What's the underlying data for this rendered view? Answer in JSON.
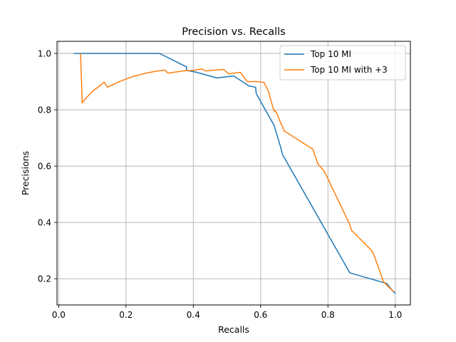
{
  "chart_data": {
    "type": "line",
    "title": "Precision vs. Recalls",
    "xlabel": "Recalls",
    "ylabel": "Precisions",
    "xlim": [
      -0.005,
      1.045
    ],
    "ylim": [
      0.107,
      1.043
    ],
    "xticks": [
      0.0,
      0.2,
      0.4,
      0.6,
      0.8,
      1.0
    ],
    "xtick_labels": [
      "0.0",
      "0.2",
      "0.4",
      "0.6",
      "0.8",
      "1.0"
    ],
    "yticks": [
      0.2,
      0.4,
      0.6,
      0.8,
      1.0
    ],
    "ytick_labels": [
      "0.2",
      "0.4",
      "0.6",
      "0.8",
      "1.0"
    ],
    "grid": true,
    "legend_position": "upper right",
    "series": [
      {
        "name": "Top 10 MI",
        "color": "#1f77b4",
        "points": [
          [
            0.045,
            1.0
          ],
          [
            0.3,
            1.0
          ],
          [
            0.38,
            0.952
          ],
          [
            0.38,
            0.94
          ],
          [
            0.41,
            0.933
          ],
          [
            0.47,
            0.913
          ],
          [
            0.52,
            0.92
          ],
          [
            0.565,
            0.885
          ],
          [
            0.585,
            0.88
          ],
          [
            0.587,
            0.857
          ],
          [
            0.64,
            0.745
          ],
          [
            0.66,
            0.665
          ],
          [
            0.665,
            0.641
          ],
          [
            0.865,
            0.221
          ],
          [
            0.975,
            0.183
          ],
          [
            0.99,
            0.16
          ],
          [
            1.0,
            0.148
          ]
        ]
      },
      {
        "name": "Top 10 MI with +3",
        "color": "#ff7f0e",
        "points": [
          [
            0.065,
            1.0
          ],
          [
            0.07,
            0.824
          ],
          [
            0.08,
            0.84
          ],
          [
            0.1,
            0.865
          ],
          [
            0.12,
            0.883
          ],
          [
            0.135,
            0.898
          ],
          [
            0.145,
            0.88
          ],
          [
            0.18,
            0.9
          ],
          [
            0.22,
            0.918
          ],
          [
            0.26,
            0.93
          ],
          [
            0.29,
            0.937
          ],
          [
            0.315,
            0.941
          ],
          [
            0.325,
            0.93
          ],
          [
            0.37,
            0.938
          ],
          [
            0.4,
            0.94
          ],
          [
            0.425,
            0.945
          ],
          [
            0.435,
            0.938
          ],
          [
            0.49,
            0.943
          ],
          [
            0.505,
            0.928
          ],
          [
            0.54,
            0.933
          ],
          [
            0.56,
            0.9
          ],
          [
            0.575,
            0.9
          ],
          [
            0.59,
            0.9
          ],
          [
            0.61,
            0.897
          ],
          [
            0.625,
            0.86
          ],
          [
            0.63,
            0.835
          ],
          [
            0.64,
            0.795
          ],
          [
            0.645,
            0.795
          ],
          [
            0.67,
            0.725
          ],
          [
            0.755,
            0.66
          ],
          [
            0.77,
            0.608
          ],
          [
            0.79,
            0.58
          ],
          [
            0.865,
            0.392
          ],
          [
            0.87,
            0.372
          ],
          [
            0.93,
            0.3
          ],
          [
            0.935,
            0.29
          ],
          [
            0.965,
            0.19
          ],
          [
            0.985,
            0.165
          ],
          [
            0.995,
            0.155
          ]
        ]
      }
    ]
  }
}
